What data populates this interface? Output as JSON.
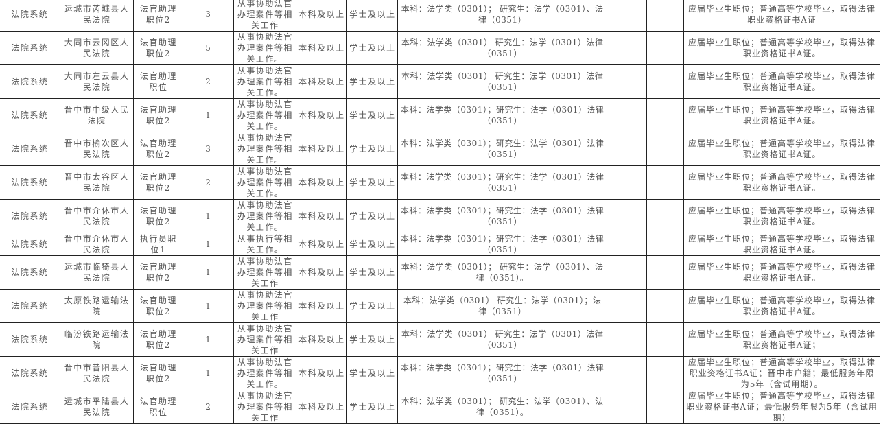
{
  "rows": [
    {
      "system": "法院系统",
      "unit": "运城市芮城县人民法院",
      "position": "法官助理职位2",
      "count": "3",
      "duties": "从事协助法官办理案件等相关工作",
      "education": "本科及以上",
      "degree": "学士及以上",
      "major": "本科：法学类（0301）； 研究生：法学（0301）、法律（0351）",
      "col9": "",
      "col10": "",
      "notes": "应届毕业生职位；普通高等学校毕业，取得法律职业资格证书A证"
    },
    {
      "system": "法院系统",
      "unit": "大同市云冈区人民法院",
      "position": "法官助理职位2",
      "count": "5",
      "duties": "从事协助法官办理案件等相关工作。",
      "education": "本科及以上",
      "degree": "学士及以上",
      "major": "本科：法学类（0301） 研究生：法学（0301）法律（0351）",
      "col9": "",
      "col10": "",
      "notes": "应届毕业生职位；普通高等学校毕业，取得法律职业资格证书A证。"
    },
    {
      "system": "法院系统",
      "unit": "大同市左云县人民法院",
      "position": "法官助理职位",
      "count": "2",
      "duties": "从事协助法官办理案件等相关工作。",
      "education": "本科及以上",
      "degree": "学士及以上",
      "major": "本科：法学类（0301） 研究生：法学（0301）法律（0351）",
      "col9": "",
      "col10": "",
      "notes": "应届毕业生职位；普通高等学校毕业，取得法律职业资格证书A证。"
    },
    {
      "system": "法院系统",
      "unit": "晋中市中级人民法院",
      "position": "法官助理职位2",
      "count": "1",
      "duties": "从事协助法官办理案件等相关工作。",
      "education": "本科及以上",
      "degree": "学士及以上",
      "major": "本科：法学类（0301）；研究生：法学（0301）法律（0351）",
      "col9": "",
      "col10": "",
      "notes": "应届毕业生职位；普通高等学校毕业，取得法律职业资格证书A证。"
    },
    {
      "system": "法院系统",
      "unit": "晋中市榆次区人民法院",
      "position": "法官助理职位2",
      "count": "3",
      "duties": "从事协助法官办理案件等相关工作。",
      "education": "本科及以上",
      "degree": "学士及以上",
      "major": "本科：法学类（0301）；研究生：法学（0301）法律（0351）",
      "col9": "",
      "col10": "",
      "notes": "应届毕业生职位；普通高等学校毕业，取得法律职业资格证书A证。"
    },
    {
      "system": "法院系统",
      "unit": "晋中市太谷区人民法院",
      "position": "法官助理职位2",
      "count": "2",
      "duties": "从事协助法官办理案件等相关工作。",
      "education": "本科及以上",
      "degree": "学士及以上",
      "major": "本科：法学类（0301）；研究生：法学（0301）法律（0351）",
      "col9": "",
      "col10": "",
      "notes": "应届毕业生职位；普通高等学校毕业，取得法律职业资格证书A证。"
    },
    {
      "system": "法院系统",
      "unit": "晋中市介休市人民法院",
      "position": "法官助理职位2",
      "count": "1",
      "duties": "从事协助法官办理案件等相关工作。",
      "education": "本科及以上",
      "degree": "学士及以上",
      "major": "本科：法学类（0301）；研究生：法学（0301）法律（0351）",
      "col9": "",
      "col10": "",
      "notes": "应届毕业生职位；普通高等学校毕业，取得法律职业资格证书A证。"
    },
    {
      "system": "法院系统",
      "unit": "晋中市介休市人民法院",
      "position": "执行员职位1",
      "count": "1",
      "duties": "从事执行等相关工作。",
      "education": "本科及以上",
      "degree": "学士及以上",
      "major": "本科：法学类（0301）；研究生：法学（0301）法律（0351）",
      "col9": "",
      "col10": "",
      "notes": "应届毕业生职位；普通高等学校毕业，取得法律职业资格证书A证。"
    },
    {
      "system": "法院系统",
      "unit": "运城市临猗县人民法院",
      "position": "法官助理职位2",
      "count": "1",
      "duties": "从事协助法官办理案件等相关工作",
      "education": "本科及以上",
      "degree": "学士及以上",
      "major": "本科：法学类（0301）； 研究生：法学（0301）、法律（0351）。",
      "col9": "",
      "col10": "",
      "notes": "应届毕业生职位；普通高等学校毕业，取得法律职业资格证书A证。"
    },
    {
      "system": "法院系统",
      "unit": "太原铁路运输法院",
      "position": "法官助理职位2",
      "count": "1",
      "duties": "从事协助法官办理案件等相关工作",
      "education": "本科及以上",
      "degree": "学士及以上",
      "major": "本科：法学类（0301） 研究生：法学（0301）；法律（0351）",
      "col9": "",
      "col10": "",
      "notes": "应届毕业生职位；普通高等学校毕业，取得法律职业资格证书A证。"
    },
    {
      "system": "法院系统",
      "unit": "临汾铁路运输法院",
      "position": "法官助理职位2",
      "count": "1",
      "duties": "从事协助法官办理案件等相关工作",
      "education": "本科及以上",
      "degree": "学士及以上",
      "major": "本科：法学类（0301） 研究生：法学（0301）法律（0351）",
      "col9": "",
      "col10": "",
      "notes": "应届毕业生职位；普通高等学校毕业，取得法律职业资格证书A证；"
    },
    {
      "system": "法院系统",
      "unit": "晋中市昔阳县人民法院",
      "position": "法官助理职位2",
      "count": "1",
      "duties": "从事协助法官办理案件等相关工作。",
      "education": "本科及以上",
      "degree": "学士及以上",
      "major": "本科：法学类（0301）；研究生：法学（0301）法律（0351）",
      "col9": "",
      "col10": "",
      "notes": "应届毕业生职位；普通高等学校毕业，取得法律职业资格证书A证；晋中市户籍；最低服务年限为5年（含试用期）。"
    },
    {
      "system": "法院系统",
      "unit": "运城市平陆县人民法院",
      "position": "法官助理职位",
      "count": "2",
      "duties": "从事协助法官办理案件等相关工作",
      "education": "本科及以上",
      "degree": "学士及以上",
      "major": "本科：法学类（0301）； 研究生：法学（0301）、法律（0351）。",
      "col9": "",
      "col10": "",
      "notes": "应届毕业生职位；普通高等学校毕业，取得法律职业资格证书A证；最低服务年限为5年（含试用期）"
    }
  ]
}
